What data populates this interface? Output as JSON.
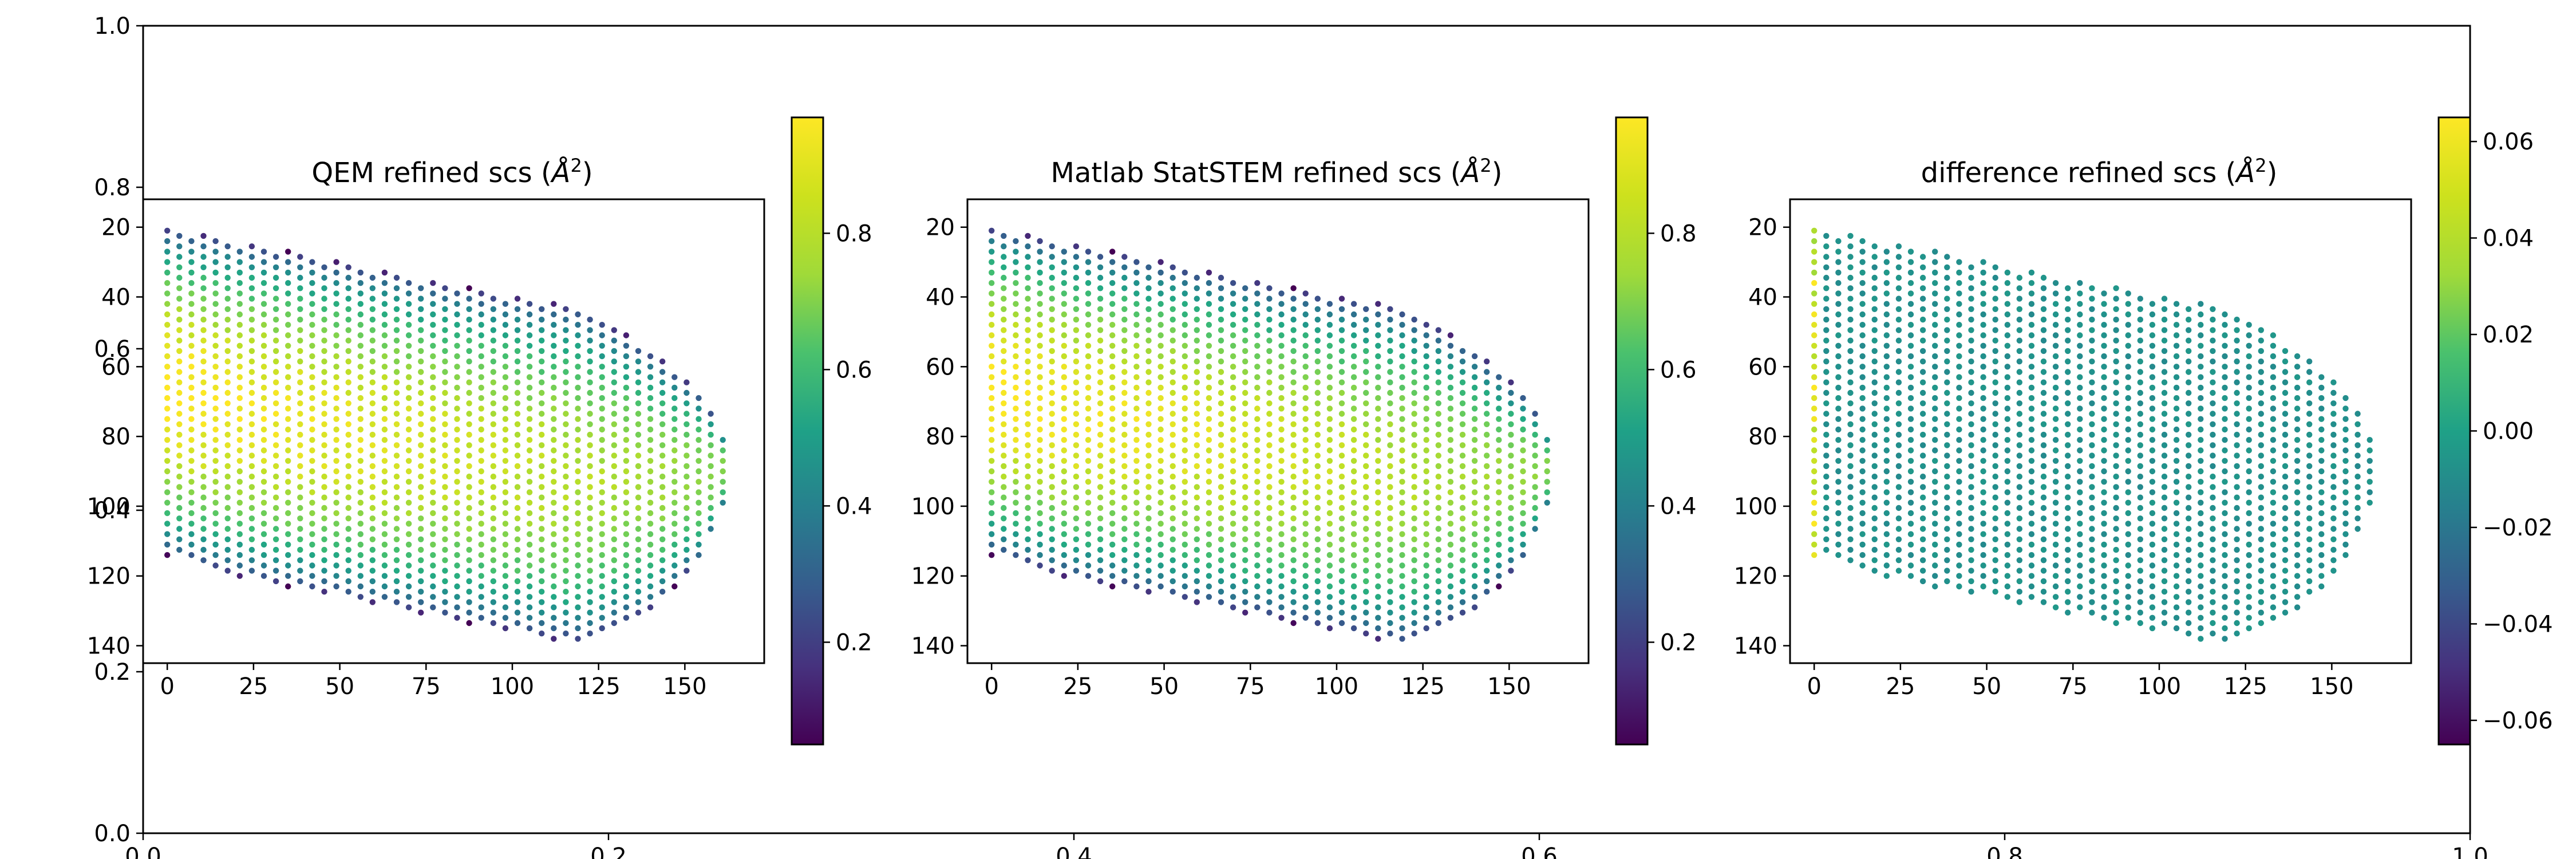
{
  "chart_data": [
    {
      "type": "axes",
      "role": "background-axes",
      "xlim": [
        0.0,
        1.0
      ],
      "ylim": [
        0.0,
        1.0
      ],
      "xticks": [
        "0.0",
        "0.2",
        "0.4",
        "0.6",
        "0.8",
        "1.0"
      ],
      "yticks": [
        "0.0",
        "0.2",
        "0.4",
        "0.6",
        "0.8",
        "1.0"
      ]
    },
    {
      "type": "scatter",
      "title": "QEM refined scs (Å²)",
      "title_main": "QEM refined scs (",
      "title_unit": "Å",
      "title_exp": "2",
      "title_close": ")",
      "xlim": [
        -7,
        173
      ],
      "ylim": [
        145,
        12
      ],
      "y_inverted": true,
      "xticks": [
        "0",
        "25",
        "50",
        "75",
        "100",
        "125",
        "150"
      ],
      "yticks": [
        "20",
        "40",
        "60",
        "80",
        "100",
        "120",
        "140"
      ],
      "colormap": "viridis",
      "color_range": [
        0.05,
        0.97
      ],
      "colorbar_ticks": [
        "0.2",
        "0.4",
        "0.6",
        "0.8"
      ],
      "colorbar_tick_values": [
        0.2,
        0.4,
        0.6,
        0.8
      ],
      "field": "scs"
    },
    {
      "type": "scatter",
      "title": "Matlab StatSTEM refined scs (Å²)",
      "title_main": "Matlab StatSTEM refined scs (",
      "title_unit": "Å",
      "title_exp": "2",
      "title_close": ")",
      "xlim": [
        -7,
        173
      ],
      "ylim": [
        145,
        12
      ],
      "y_inverted": true,
      "xticks": [
        "0",
        "25",
        "50",
        "75",
        "100",
        "125",
        "150"
      ],
      "yticks": [
        "20",
        "40",
        "60",
        "80",
        "100",
        "120",
        "140"
      ],
      "colormap": "viridis",
      "color_range": [
        0.05,
        0.97
      ],
      "colorbar_ticks": [
        "0.2",
        "0.4",
        "0.6",
        "0.8"
      ],
      "colorbar_tick_values": [
        0.2,
        0.4,
        0.6,
        0.8
      ],
      "field": "scs"
    },
    {
      "type": "scatter",
      "title": "difference refined scs (Å²)",
      "title_main": "difference refined scs (",
      "title_unit": "Å",
      "title_exp": "2",
      "title_close": ")",
      "xlim": [
        -7,
        173
      ],
      "ylim": [
        145,
        12
      ],
      "y_inverted": true,
      "xticks": [
        "0",
        "25",
        "50",
        "75",
        "100",
        "125",
        "150"
      ],
      "yticks": [
        "20",
        "40",
        "60",
        "80",
        "100",
        "120",
        "140"
      ],
      "colormap": "viridis",
      "color_range": [
        -0.065,
        0.065
      ],
      "colorbar_ticks": [
        "−0.06",
        "−0.04",
        "−0.02",
        "0.00",
        "0.02",
        "0.04",
        "0.06"
      ],
      "colorbar_tick_values": [
        -0.06,
        -0.04,
        -0.02,
        0.0,
        0.02,
        0.04,
        0.06
      ],
      "field": "difference"
    }
  ],
  "particle": {
    "x_range": [
      0,
      163
    ],
    "y_range": [
      18,
      140
    ],
    "column_spacing": 3.5,
    "row_spacing": 3.0,
    "outline_top": [
      [
        0,
        20
      ],
      [
        30,
        26
      ],
      [
        60,
        32
      ],
      [
        90,
        38
      ],
      [
        120,
        43
      ],
      [
        140,
        55
      ],
      [
        155,
        68
      ],
      [
        163,
        82
      ],
      [
        163,
        96
      ]
    ],
    "outline_bottom": [
      [
        0,
        114
      ],
      [
        20,
        120
      ],
      [
        50,
        126
      ],
      [
        80,
        132
      ],
      [
        100,
        136
      ],
      [
        120,
        140
      ],
      [
        140,
        130
      ],
      [
        155,
        115
      ],
      [
        163,
        96
      ]
    ],
    "scs_peak": 0.97,
    "scs_edge": 0.05,
    "difference_background": 0.0,
    "difference_left_edge": 0.065
  }
}
